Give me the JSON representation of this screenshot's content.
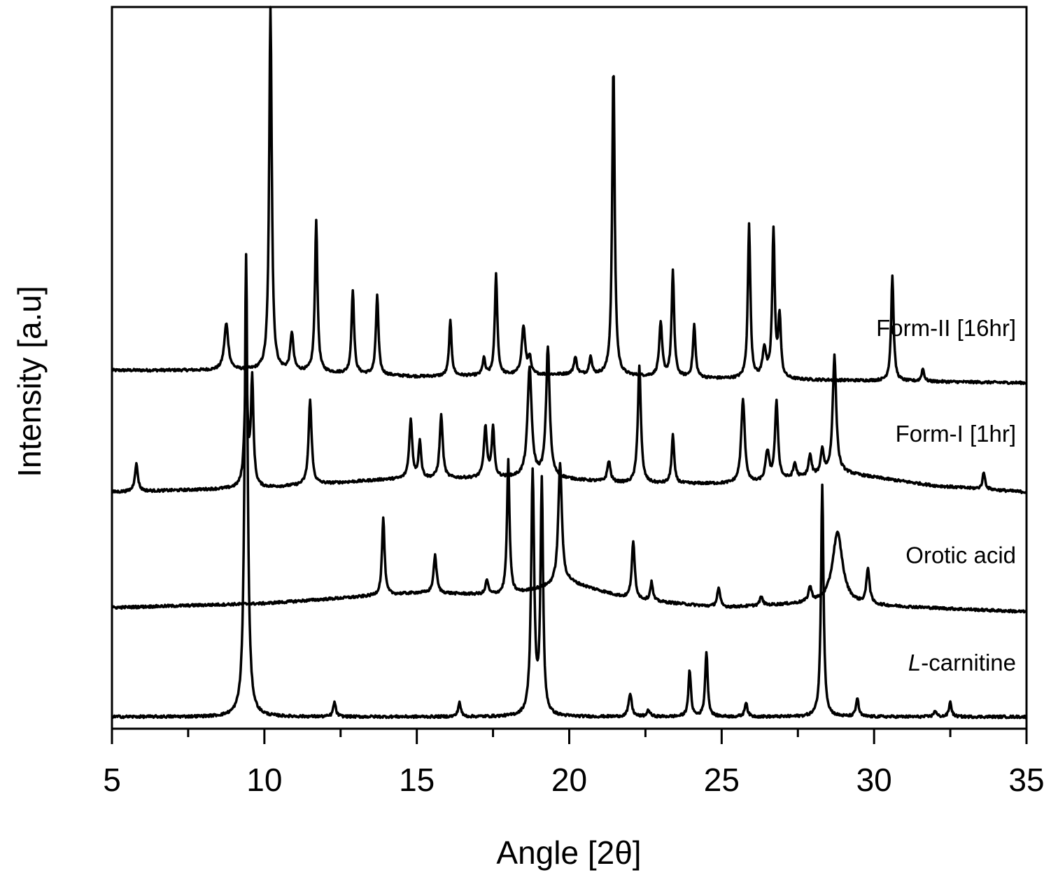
{
  "chart_data": {
    "type": "line",
    "title": "",
    "xlabel": "Angle [2θ]",
    "ylabel": "Intensity [a.u]",
    "xlim": [
      5,
      35
    ],
    "xticks": [
      "5",
      "10",
      "15",
      "20",
      "25",
      "30",
      "35"
    ],
    "yticks_shown": false,
    "grid": false,
    "legend": "none (labels placed at right above each trace)",
    "line_color": "#000000",
    "series": [
      {
        "name": "Form-II [16hr]",
        "label": "Form-II [16hr]",
        "label_italic_prefix": "",
        "offset": 1.65,
        "baseline": [
          [
            5,
            0.0
          ],
          [
            10,
            0.0
          ],
          [
            15,
            -0.03
          ],
          [
            20,
            -0.02
          ],
          [
            25,
            -0.04
          ],
          [
            30,
            -0.05
          ],
          [
            35,
            -0.06
          ]
        ],
        "peaks": [
          [
            8.75,
            0.22,
            0.08
          ],
          [
            10.2,
            1.75,
            0.05
          ],
          [
            10.9,
            0.18,
            0.06
          ],
          [
            11.7,
            0.72,
            0.05
          ],
          [
            12.9,
            0.4,
            0.05
          ],
          [
            13.7,
            0.38,
            0.05
          ],
          [
            16.1,
            0.26,
            0.05
          ],
          [
            17.2,
            0.08,
            0.05
          ],
          [
            17.6,
            0.48,
            0.05
          ],
          [
            18.5,
            0.23,
            0.07
          ],
          [
            18.7,
            0.08,
            0.05
          ],
          [
            20.2,
            0.08,
            0.06
          ],
          [
            20.7,
            0.09,
            0.05
          ],
          [
            21.45,
            1.48,
            0.05
          ],
          [
            23.0,
            0.25,
            0.06
          ],
          [
            23.4,
            0.5,
            0.05
          ],
          [
            24.1,
            0.25,
            0.05
          ],
          [
            26.4,
            0.14,
            0.07
          ],
          [
            25.9,
            0.73,
            0.05
          ],
          [
            26.7,
            0.7,
            0.05
          ],
          [
            26.9,
            0.29,
            0.05
          ],
          [
            30.6,
            0.5,
            0.05
          ],
          [
            31.6,
            0.06,
            0.05
          ]
        ]
      },
      {
        "name": "Form-I [1hr]",
        "label": "Form-I [1hr]",
        "label_italic_prefix": "",
        "offset": 1.07,
        "baseline": [
          [
            5,
            0.0
          ],
          [
            10,
            0.02
          ],
          [
            14,
            0.06
          ],
          [
            19,
            0.07
          ],
          [
            22,
            0.04
          ],
          [
            26,
            0.04
          ],
          [
            29,
            0.09
          ],
          [
            32,
            0.03
          ],
          [
            35,
            0.0
          ]
        ],
        "peaks": [
          [
            5.8,
            0.13,
            0.06
          ],
          [
            9.4,
            0.56,
            0.06
          ],
          [
            9.6,
            0.5,
            0.05
          ],
          [
            11.5,
            0.4,
            0.06
          ],
          [
            14.8,
            0.28,
            0.06
          ],
          [
            15.1,
            0.18,
            0.05
          ],
          [
            15.8,
            0.3,
            0.06
          ],
          [
            17.25,
            0.24,
            0.06
          ],
          [
            17.5,
            0.24,
            0.05
          ],
          [
            18.7,
            0.52,
            0.08
          ],
          [
            19.3,
            0.62,
            0.07
          ],
          [
            21.3,
            0.1,
            0.06
          ],
          [
            22.3,
            0.56,
            0.06
          ],
          [
            23.4,
            0.23,
            0.05
          ],
          [
            25.7,
            0.4,
            0.07
          ],
          [
            26.5,
            0.14,
            0.07
          ],
          [
            26.8,
            0.37,
            0.06
          ],
          [
            27.4,
            0.07,
            0.06
          ],
          [
            27.9,
            0.1,
            0.06
          ],
          [
            28.3,
            0.12,
            0.06
          ],
          [
            28.7,
            0.56,
            0.07
          ],
          [
            33.6,
            0.08,
            0.05
          ]
        ]
      },
      {
        "name": "Orotic acid",
        "label": "Orotic acid",
        "label_italic_prefix": "",
        "offset": 0.52,
        "baseline": [
          [
            5,
            0.0
          ],
          [
            10,
            0.02
          ],
          [
            15,
            0.07
          ],
          [
            18,
            0.06
          ],
          [
            20,
            0.12
          ],
          [
            22,
            0.04
          ],
          [
            25,
            0.0
          ],
          [
            28,
            0.02
          ],
          [
            35,
            -0.02
          ]
        ],
        "peaks": [
          [
            13.9,
            0.37,
            0.05
          ],
          [
            15.6,
            0.18,
            0.06
          ],
          [
            17.3,
            0.07,
            0.05
          ],
          [
            18.0,
            0.64,
            0.05
          ],
          [
            19.7,
            0.58,
            0.07
          ],
          [
            22.1,
            0.27,
            0.06
          ],
          [
            22.7,
            0.09,
            0.05
          ],
          [
            24.9,
            0.09,
            0.06
          ],
          [
            26.3,
            0.04,
            0.06
          ],
          [
            27.9,
            0.07,
            0.06
          ],
          [
            28.8,
            0.34,
            0.2
          ],
          [
            29.8,
            0.17,
            0.06
          ]
        ]
      },
      {
        "name": "L-carnitine",
        "label": "-carnitine",
        "label_italic_prefix": "L",
        "offset": 0.0,
        "baseline": [
          [
            5,
            0.0
          ],
          [
            35,
            0.0
          ]
        ],
        "peaks": [
          [
            9.4,
            2.2,
            0.06
          ],
          [
            12.3,
            0.07,
            0.05
          ],
          [
            16.4,
            0.07,
            0.05
          ],
          [
            18.8,
            1.15,
            0.06
          ],
          [
            19.1,
            1.1,
            0.05
          ],
          [
            22.0,
            0.11,
            0.06
          ],
          [
            22.6,
            0.03,
            0.06
          ],
          [
            23.95,
            0.22,
            0.05
          ],
          [
            24.5,
            0.31,
            0.05
          ],
          [
            25.8,
            0.07,
            0.05
          ],
          [
            28.3,
            1.1,
            0.05
          ],
          [
            29.45,
            0.09,
            0.05
          ],
          [
            32.5,
            0.07,
            0.05
          ],
          [
            32.0,
            0.03,
            0.05
          ]
        ]
      }
    ]
  }
}
